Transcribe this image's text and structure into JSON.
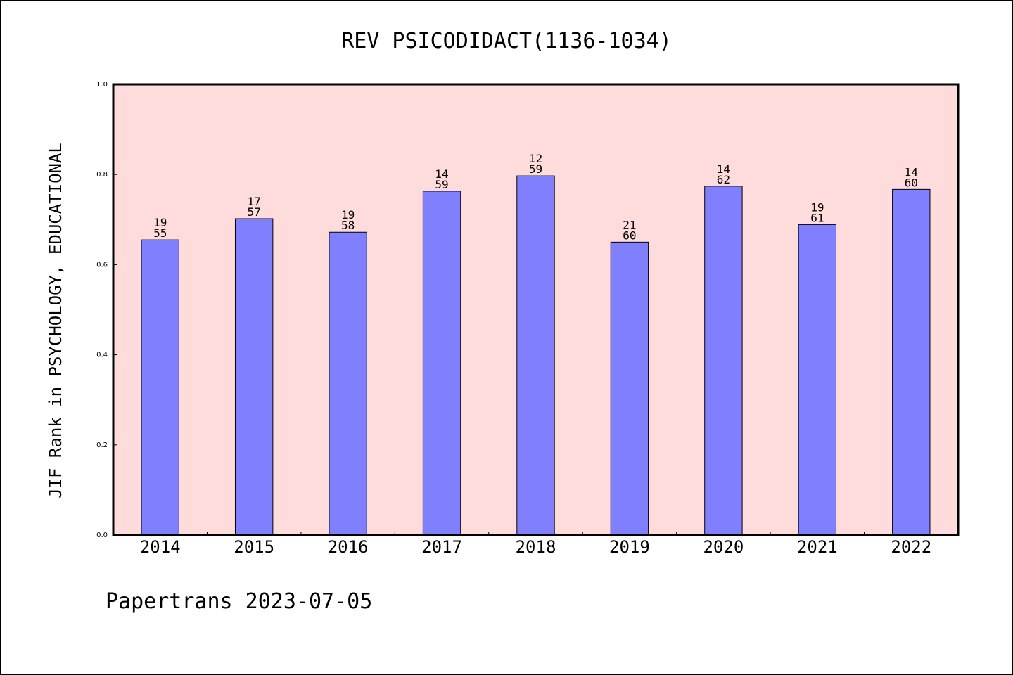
{
  "chart_data": {
    "type": "bar",
    "title": "REV PSICODIDACT(1136-1034)",
    "xlabel": "",
    "ylabel": "JIF Rank in PSYCHOLOGY, EDUCATIONAL",
    "ylim": [
      0,
      1.0
    ],
    "yticks": [
      "0.0",
      "0.2",
      "0.4",
      "0.6",
      "0.8",
      "1.0"
    ],
    "categories": [
      "2014",
      "2015",
      "2016",
      "2017",
      "2018",
      "2019",
      "2020",
      "2021",
      "2022"
    ],
    "values": [
      0.655,
      0.702,
      0.672,
      0.763,
      0.797,
      0.65,
      0.774,
      0.689,
      0.767
    ],
    "rank_labels": [
      [
        "19",
        "55"
      ],
      [
        "17",
        "57"
      ],
      [
        "19",
        "58"
      ],
      [
        "14",
        "59"
      ],
      [
        "12",
        "59"
      ],
      [
        "21",
        "60"
      ],
      [
        "14",
        "62"
      ],
      [
        "19",
        "61"
      ],
      [
        "14",
        "60"
      ]
    ],
    "grid": false,
    "colors": {
      "bar": "#8080ff",
      "plot_background": "#ffdcdc"
    }
  },
  "footer": "Papertrans 2023-07-05"
}
